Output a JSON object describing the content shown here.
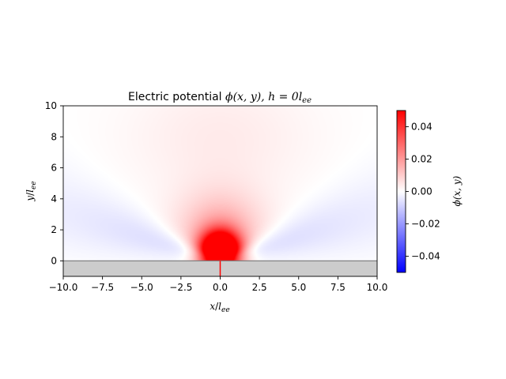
{
  "chart_data": {
    "type": "heatmap",
    "title": {
      "prefix": "Electric potential  ",
      "phi": "ϕ",
      "args": "(x, y)",
      "mid": ", h = 0",
      "l": "l",
      "sub": "ee"
    },
    "xlabel": {
      "var": "x",
      "slash": "/",
      "l": "l",
      "sub": "ee"
    },
    "ylabel": {
      "var": "y",
      "slash": "/",
      "l": "l",
      "sub": "ee"
    },
    "xlim": [
      -10.0,
      10.0
    ],
    "ylim": [
      -1.0,
      10.0
    ],
    "xticks": [
      "−10.0",
      "−7.5",
      "−5.0",
      "−2.5",
      "0.0",
      "2.5",
      "5.0",
      "7.5",
      "10.0"
    ],
    "xtick_values": [
      -10,
      -7.5,
      -5,
      -2.5,
      0,
      2.5,
      5,
      7.5,
      10
    ],
    "yticks": [
      "0",
      "2",
      "4",
      "6",
      "8",
      "10"
    ],
    "ytick_values": [
      0,
      2,
      4,
      6,
      8,
      10
    ],
    "colormap": "bwr",
    "colorbar": {
      "label": {
        "phi": "ϕ",
        "args": "(x, y)"
      },
      "range": [
        -0.05,
        0.05
      ],
      "ticks": [
        "−0.04",
        "−0.02",
        "0.00",
        "0.02",
        "0.04"
      ],
      "tick_values": [
        -0.04,
        -0.02,
        0.0,
        0.02,
        0.04
      ]
    },
    "substrate": {
      "y_range": [
        -1.0,
        0.0
      ],
      "color": "#cccccc",
      "edge_color": "#808080"
    },
    "source_marker": {
      "x": 0.0,
      "y_range": [
        -1.0,
        0.0
      ],
      "color": "#ff0000"
    },
    "colors": {
      "positive": "#ff0000",
      "negative": "#0000ff",
      "zero": "#ffffff"
    },
    "field_model": {
      "positive_peak_x": 0.0,
      "positive_peak_y": 0.5,
      "negative_lobe_angle_deg": 18,
      "note_free": true
    }
  }
}
